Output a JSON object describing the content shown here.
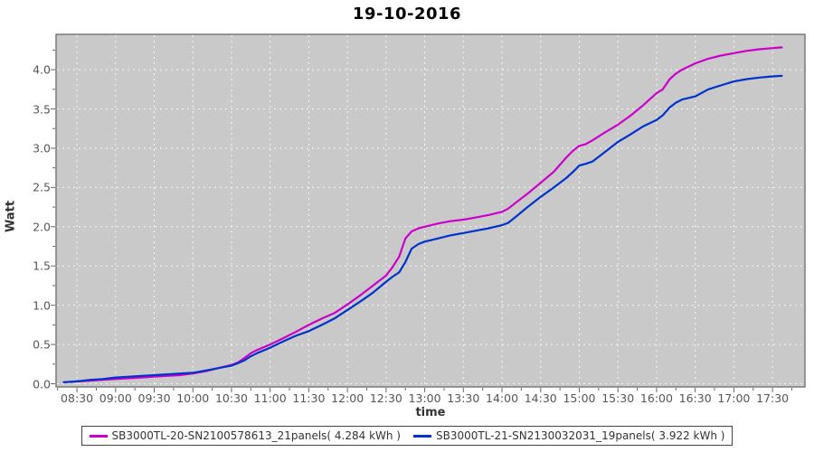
{
  "title": "19-10-2016",
  "axes": {
    "x_label": "time",
    "y_label": "Watt",
    "x_tick_labels": [
      "08:30",
      "09:00",
      "09:30",
      "10:00",
      "10:30",
      "11:00",
      "11:30",
      "12:00",
      "12:30",
      "13:00",
      "13:30",
      "14:00",
      "14:30",
      "15:00",
      "15:30",
      "16:00",
      "16:30",
      "17:00",
      "17:30"
    ],
    "y_tick_labels": [
      "0.0",
      "0.5",
      "1.0",
      "1.5",
      "2.0",
      "2.5",
      "3.0",
      "3.5",
      "4.0"
    ]
  },
  "legend": {
    "items": [
      {
        "label": "SB3000TL-20-SN2100578613_21panels( 4.284 kWh )",
        "color": "#CC00CC"
      },
      {
        "label": "SB3000TL-21-SN2130032031_19panels( 3.922 kWh )",
        "color": "#0033CC"
      }
    ]
  },
  "colors": {
    "plot_background": "#C9C9C9",
    "plot_border": "#7A7A7A",
    "gridline": "#FFFFFF",
    "tick_mark": "#666666",
    "series_magenta": "#CC00CC",
    "series_blue": "#0033CC"
  },
  "chart_data": {
    "type": "line",
    "title": "19-10-2016",
    "xlabel": "time",
    "ylabel": "Watt",
    "x_unit": "decimal_hours",
    "x_range": [
      8.23,
      17.92
    ],
    "y_range": [
      -0.04,
      4.45
    ],
    "x_major_ticks": [
      8.5,
      9.0,
      9.5,
      10.0,
      10.5,
      11.0,
      11.5,
      12.0,
      12.5,
      13.0,
      13.5,
      14.0,
      14.5,
      15.0,
      15.5,
      16.0,
      16.5,
      17.0,
      17.5
    ],
    "y_major_ticks": [
      0.0,
      0.5,
      1.0,
      1.5,
      2.0,
      2.5,
      3.0,
      3.5,
      4.0
    ],
    "x_minor_step": 0.25,
    "y_minor_step": 0.25,
    "grid": "white-dashed-on-gray",
    "legend_position": "bottom-center",
    "x": [
      8.33,
      8.5,
      8.67,
      8.83,
      9.0,
      9.17,
      9.33,
      9.5,
      9.67,
      9.83,
      10.0,
      10.17,
      10.33,
      10.5,
      10.58,
      10.67,
      10.75,
      10.83,
      11.0,
      11.17,
      11.33,
      11.5,
      11.67,
      11.83,
      12.0,
      12.17,
      12.33,
      12.5,
      12.58,
      12.67,
      12.75,
      12.83,
      12.92,
      13.0,
      13.17,
      13.33,
      13.5,
      13.67,
      13.83,
      14.0,
      14.08,
      14.17,
      14.33,
      14.5,
      14.67,
      14.83,
      14.92,
      15.0,
      15.08,
      15.17,
      15.33,
      15.5,
      15.67,
      15.83,
      16.0,
      16.08,
      16.17,
      16.25,
      16.33,
      16.5,
      16.67,
      16.83,
      17.0,
      17.17,
      17.33,
      17.5,
      17.62
    ],
    "series": [
      {
        "name": "SB3000TL-20-SN2100578613_21panels( 4.284 kWh )",
        "total_kwh": 4.284,
        "color": "#CC00CC",
        "values": [
          0.02,
          0.03,
          0.04,
          0.05,
          0.06,
          0.07,
          0.08,
          0.09,
          0.1,
          0.11,
          0.13,
          0.16,
          0.2,
          0.24,
          0.27,
          0.33,
          0.39,
          0.43,
          0.5,
          0.58,
          0.66,
          0.75,
          0.83,
          0.9,
          1.01,
          1.13,
          1.25,
          1.38,
          1.48,
          1.62,
          1.85,
          1.94,
          1.98,
          2.0,
          2.04,
          2.07,
          2.09,
          2.12,
          2.15,
          2.19,
          2.23,
          2.3,
          2.42,
          2.56,
          2.7,
          2.88,
          2.97,
          3.03,
          3.05,
          3.1,
          3.2,
          3.3,
          3.42,
          3.55,
          3.7,
          3.75,
          3.88,
          3.95,
          4.0,
          4.08,
          4.14,
          4.18,
          4.21,
          4.24,
          4.26,
          4.275,
          4.284
        ]
      },
      {
        "name": "SB3000TL-21-SN2130032031_19panels( 3.922 kWh )",
        "total_kwh": 3.922,
        "color": "#0033CC",
        "values": [
          0.02,
          0.03,
          0.05,
          0.06,
          0.08,
          0.09,
          0.1,
          0.11,
          0.12,
          0.13,
          0.14,
          0.17,
          0.2,
          0.23,
          0.26,
          0.3,
          0.35,
          0.39,
          0.46,
          0.54,
          0.61,
          0.67,
          0.75,
          0.83,
          0.94,
          1.05,
          1.16,
          1.3,
          1.36,
          1.42,
          1.55,
          1.72,
          1.78,
          1.81,
          1.85,
          1.89,
          1.92,
          1.95,
          1.98,
          2.02,
          2.05,
          2.12,
          2.25,
          2.38,
          2.5,
          2.62,
          2.7,
          2.78,
          2.8,
          2.83,
          2.95,
          3.08,
          3.18,
          3.28,
          3.36,
          3.42,
          3.52,
          3.58,
          3.62,
          3.66,
          3.75,
          3.8,
          3.85,
          3.88,
          3.9,
          3.915,
          3.922
        ]
      }
    ]
  }
}
